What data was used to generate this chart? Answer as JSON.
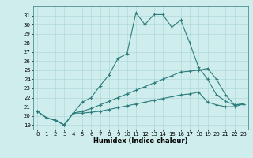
{
  "x": [
    0,
    1,
    2,
    3,
    4,
    5,
    6,
    7,
    8,
    9,
    10,
    11,
    12,
    13,
    14,
    15,
    16,
    17,
    18,
    19,
    20,
    21,
    22,
    23
  ],
  "line1": [
    20.5,
    19.8,
    19.5,
    19.0,
    20.3,
    21.5,
    22.0,
    23.3,
    24.5,
    26.3,
    26.8,
    31.3,
    30.0,
    31.1,
    31.1,
    29.7,
    30.5,
    28.0,
    25.3,
    24.0,
    22.3,
    21.6,
    21.2,
    21.3
  ],
  "line2": [
    20.5,
    19.8,
    19.5,
    19.0,
    20.3,
    20.5,
    20.8,
    21.2,
    21.6,
    22.0,
    22.4,
    22.8,
    23.2,
    23.6,
    24.0,
    24.4,
    24.8,
    24.9,
    25.0,
    25.2,
    24.0,
    22.3,
    21.2,
    21.3
  ],
  "line3": [
    20.5,
    19.8,
    19.5,
    19.0,
    20.3,
    20.3,
    20.4,
    20.5,
    20.7,
    20.9,
    21.1,
    21.3,
    21.5,
    21.7,
    21.9,
    22.1,
    22.3,
    22.4,
    22.6,
    21.5,
    21.2,
    21.0,
    21.0,
    21.3
  ],
  "color": "#2d7d7d",
  "bgcolor": "#d0eded",
  "xlabel": "Humidex (Indice chaleur)",
  "ylim": [
    18.5,
    32.0
  ],
  "xlim": [
    -0.5,
    23.5
  ],
  "yticks": [
    19,
    20,
    21,
    22,
    23,
    24,
    25,
    26,
    27,
    28,
    29,
    30,
    31
  ],
  "xticks": [
    0,
    1,
    2,
    3,
    4,
    5,
    6,
    7,
    8,
    9,
    10,
    11,
    12,
    13,
    14,
    15,
    16,
    17,
    18,
    19,
    20,
    21,
    22,
    23
  ],
  "xtick_labels": [
    "0",
    "1",
    "2",
    "3",
    "4",
    "5",
    "6",
    "7",
    "8",
    "9",
    "10",
    "11",
    "12",
    "13",
    "14",
    "15",
    "16",
    "17",
    "18",
    "19",
    "20",
    "21",
    "22",
    "23"
  ],
  "marker": "+",
  "linewidth": 0.8,
  "markersize": 3,
  "markeredgewidth": 0.8,
  "grid_color": "#a8d4d4",
  "tick_fontsize": 5.0,
  "xlabel_fontsize": 6.0
}
